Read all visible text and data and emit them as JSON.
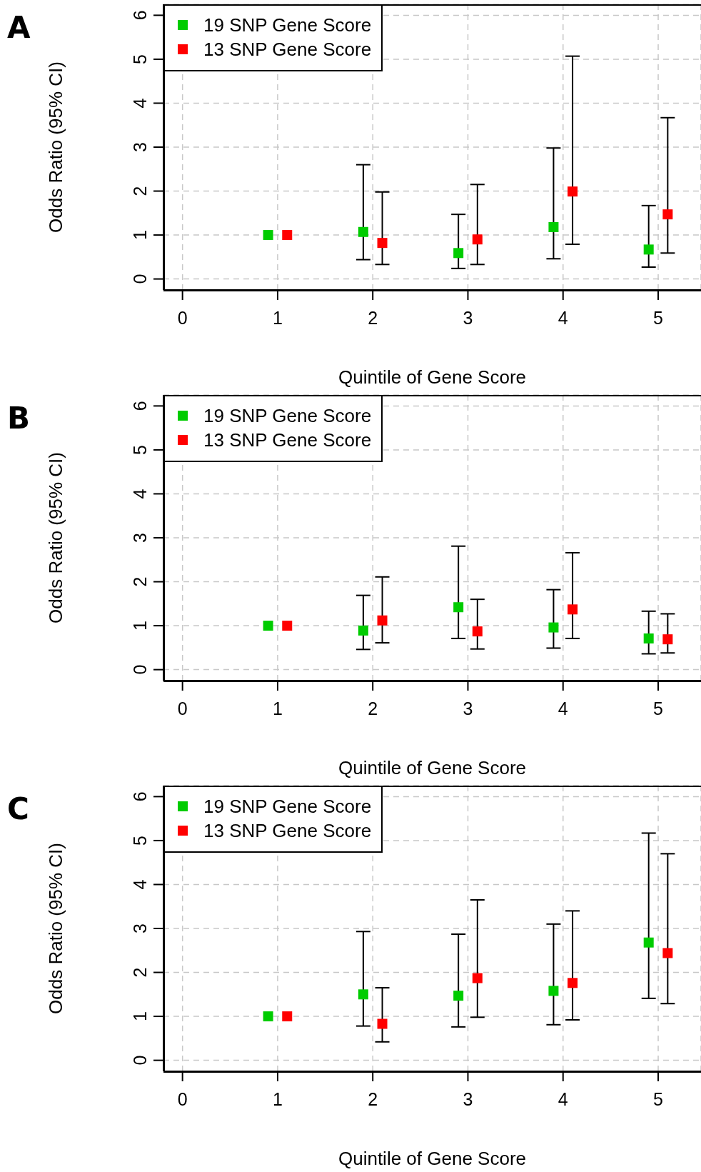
{
  "chart_data": [
    {
      "type": "scatter",
      "annotations": [
        "A"
      ],
      "xlabel": "Quintile of Gene Score",
      "ylabel": "Odds Ratio (95% CI)",
      "xlim": [
        -0.2,
        5.45
      ],
      "xticks": [
        0,
        1,
        2,
        3,
        4,
        5
      ],
      "ylim": [
        -0.25,
        6.25
      ],
      "yticks": [
        0,
        1,
        2,
        3,
        4,
        5,
        6
      ],
      "grid": true,
      "legend": "top left",
      "marker": "square",
      "series": [
        {
          "name": "19 SNP Gene Score",
          "color": "#00cc00",
          "x": [
            0.9,
            1.9,
            2.9,
            3.9,
            4.9
          ],
          "values": [
            1,
            1.07,
            0.59,
            1.18,
            0.67
          ],
          "errors": [
            null,
            [
              0.44,
              2.6
            ],
            [
              0.24,
              1.47
            ],
            [
              0.46,
              2.98
            ],
            [
              0.27,
              1.67
            ]
          ]
        },
        {
          "name": "13 SNP Gene Score",
          "color": "#ff0000",
          "x": [
            1.1,
            2.1,
            3.1,
            4.1,
            5.1
          ],
          "values": [
            1,
            0.82,
            0.9,
            1.99,
            1.47
          ],
          "errors": [
            null,
            [
              0.33,
              1.98
            ],
            [
              0.33,
              2.15
            ],
            [
              0.79,
              5.07
            ],
            [
              0.59,
              3.67
            ]
          ]
        }
      ]
    },
    {
      "type": "scatter",
      "annotations": [
        "B"
      ],
      "xlabel": "Quintile of Gene Score",
      "ylabel": "Odds Ratio (95% CI)",
      "xlim": [
        -0.2,
        5.45
      ],
      "xticks": [
        0,
        1,
        2,
        3,
        4,
        5
      ],
      "ylim": [
        -0.25,
        6.25
      ],
      "yticks": [
        0,
        1,
        2,
        3,
        4,
        5,
        6
      ],
      "grid": true,
      "legend": "top left",
      "marker": "square",
      "series": [
        {
          "name": "19 SNP Gene Score",
          "color": "#00cc00",
          "x": [
            0.9,
            1.9,
            2.9,
            3.9,
            4.9
          ],
          "values": [
            1,
            0.89,
            1.42,
            0.96,
            0.71
          ],
          "errors": [
            null,
            [
              0.46,
              1.69
            ],
            [
              0.71,
              2.81
            ],
            [
              0.49,
              1.82
            ],
            [
              0.36,
              1.33
            ]
          ]
        },
        {
          "name": "13 SNP Gene Score",
          "color": "#ff0000",
          "x": [
            1.1,
            2.1,
            3.1,
            4.1,
            5.1
          ],
          "values": [
            1,
            1.12,
            0.87,
            1.37,
            0.69
          ],
          "errors": [
            null,
            [
              0.61,
              2.11
            ],
            [
              0.47,
              1.6
            ],
            [
              0.71,
              2.66
            ],
            [
              0.38,
              1.27
            ]
          ]
        }
      ]
    },
    {
      "type": "scatter",
      "annotations": [
        "C"
      ],
      "xlabel": "Quintile of Gene Score",
      "ylabel": "Odds Ratio (95% CI)",
      "xlim": [
        -0.2,
        5.45
      ],
      "xticks": [
        0,
        1,
        2,
        3,
        4,
        5
      ],
      "ylim": [
        -0.25,
        6.25
      ],
      "yticks": [
        0,
        1,
        2,
        3,
        4,
        5,
        6
      ],
      "grid": true,
      "legend": "top left",
      "marker": "square",
      "series": [
        {
          "name": "19 SNP Gene Score",
          "color": "#00cc00",
          "x": [
            0.9,
            1.9,
            2.9,
            3.9,
            4.9
          ],
          "values": [
            1,
            1.5,
            1.47,
            1.58,
            2.68
          ],
          "errors": [
            null,
            [
              0.78,
              2.93
            ],
            [
              0.76,
              2.87
            ],
            [
              0.81,
              3.1
            ],
            [
              1.41,
              5.17
            ]
          ]
        },
        {
          "name": "13 SNP Gene Score",
          "color": "#ff0000",
          "x": [
            1.1,
            2.1,
            3.1,
            4.1,
            5.1
          ],
          "values": [
            1,
            0.83,
            1.87,
            1.76,
            2.44
          ],
          "errors": [
            null,
            [
              0.42,
              1.65
            ],
            [
              0.98,
              3.65
            ],
            [
              0.92,
              3.4
            ],
            [
              1.29,
              4.7
            ]
          ]
        }
      ]
    }
  ]
}
